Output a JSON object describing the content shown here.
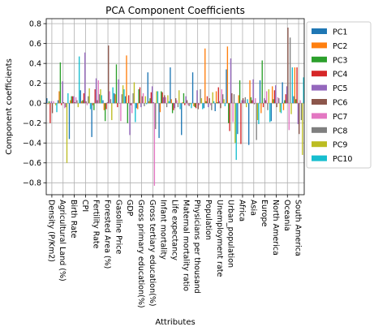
{
  "chart_data": {
    "type": "bar",
    "title": "PCA Component Coefficients",
    "xlabel": "Attributes",
    "ylabel": "Component coefficients",
    "ylim": [
      -0.92,
      0.85
    ],
    "yticks": [
      -0.8,
      -0.6,
      -0.4,
      -0.2,
      0.0,
      0.2,
      0.4,
      0.6,
      0.8
    ],
    "ytick_labels": [
      "−0.8",
      "−0.6",
      "−0.4",
      "−0.2",
      "0.0",
      "0.2",
      "0.4",
      "0.6",
      "0.8"
    ],
    "grid": true,
    "legend_position": "outside-right",
    "categories": [
      "Density (P/Km2)",
      "Agricultural Land (%)",
      "Birth Rate",
      "CPI",
      "Fertility Rate",
      "Forested Area (%)",
      "Gasoline Price",
      "GDP",
      "Gross primary education(%)",
      "Gross tertiary education(%)",
      "Infant mortality",
      "Life expectancy",
      "Maternal mortality ratio",
      "Physicians per thousand",
      "Population",
      "Unemployment rate",
      "Urban_population",
      "Africa",
      "Asia",
      "Europe",
      "North America",
      "Oceania",
      "South America"
    ],
    "series": [
      {
        "name": "PC1",
        "color": "#1f77b4",
        "values": [
          0.05,
          0.03,
          -0.36,
          0.13,
          -0.34,
          0.03,
          0.1,
          0.07,
          -0.05,
          0.31,
          -0.35,
          0.36,
          -0.32,
          0.31,
          -0.05,
          -0.08,
          0.34,
          -0.31,
          -0.42,
          0.23,
          -0.18,
          0.21,
          0.07
        ]
      },
      {
        "name": "PC2",
        "color": "#ff7f0e",
        "values": [
          -0.01,
          0.12,
          0.03,
          0.02,
          -0.02,
          -0.07,
          0.09,
          0.48,
          -0.06,
          0.02,
          -0.09,
          0.04,
          0.01,
          -0.03,
          0.55,
          0.12,
          0.57,
          0.08,
          0.23,
          -0.1,
          0.17,
          -0.07,
          0.36
        ]
      },
      {
        "name": "PC3",
        "color": "#2ca02c",
        "values": [
          0.02,
          0.41,
          0.07,
          0.03,
          -0.07,
          -0.18,
          0.39,
          -0.2,
          0.14,
          0.05,
          0.12,
          -0.1,
          0.1,
          -0.04,
          0.02,
          0.01,
          -0.2,
          0.23,
          0.06,
          0.43,
          0.04,
          0.03,
          0.04
        ]
      },
      {
        "name": "PC4",
        "color": "#d62728",
        "values": [
          -0.2,
          -0.02,
          0.07,
          0.1,
          0.14,
          -0.06,
          -0.04,
          0.08,
          0.16,
          0.11,
          0.11,
          -0.07,
          -0.02,
          -0.05,
          0.07,
          0.16,
          -0.28,
          -0.41,
          0.03,
          -0.04,
          0.13,
          0.09,
          0.36
        ]
      },
      {
        "name": "PC5",
        "color": "#9467bd",
        "values": [
          0.02,
          0.22,
          0.07,
          0.51,
          0.25,
          0.01,
          0.24,
          -0.32,
          -0.04,
          0.17,
          0.06,
          -0.05,
          0.07,
          0.13,
          -0.04,
          0.02,
          0.45,
          0.03,
          0.24,
          0.05,
          0.18,
          0.17,
          -0.21
        ]
      },
      {
        "name": "PC6",
        "color": "#8c564b",
        "values": [
          -0.1,
          0.01,
          0.01,
          0.02,
          0.03,
          0.58,
          0.0,
          -0.02,
          0.07,
          0.01,
          0.08,
          0.05,
          0.03,
          -0.06,
          0.05,
          -0.05,
          0.1,
          0.05,
          -0.01,
          0.03,
          -0.04,
          0.76,
          -0.31
        ]
      },
      {
        "name": "PC7",
        "color": "#e377c2",
        "values": [
          0.02,
          -0.05,
          0.06,
          -0.02,
          0.23,
          0.12,
          -0.18,
          -0.1,
          0.1,
          -0.83,
          0.06,
          0.03,
          -0.02,
          -0.02,
          -0.02,
          0.14,
          -0.19,
          0.03,
          0.05,
          0.12,
          0.06,
          -0.27,
          0.03
        ]
      },
      {
        "name": "PC8",
        "color": "#7f7f7f",
        "values": [
          0.0,
          -0.04,
          0.03,
          0.07,
          0.09,
          0.04,
          0.09,
          0.1,
          -0.03,
          -0.26,
          -0.04,
          -0.04,
          -0.03,
          0.14,
          -0.07,
          0.09,
          0.09,
          0.06,
          -0.37,
          -0.07,
          0.05,
          0.66,
          -0.17
        ]
      },
      {
        "name": "PC9",
        "color": "#bcbd22",
        "values": [
          -0.02,
          -0.6,
          -0.04,
          0.15,
          0.14,
          -0.17,
          0.18,
          0.21,
          0.07,
          0.12,
          0.08,
          0.13,
          -0.01,
          0.05,
          0.11,
          0.04,
          -0.4,
          -0.04,
          -0.17,
          0.14,
          -0.09,
          -0.11,
          -0.52
        ]
      },
      {
        "name": "PC10",
        "color": "#17becf",
        "values": [
          -0.09,
          0.1,
          0.47,
          -0.06,
          0.08,
          0.16,
          0.14,
          -0.19,
          -0.01,
          0.12,
          0.02,
          -0.06,
          -0.05,
          -0.06,
          0.02,
          -0.03,
          -0.57,
          0.04,
          -0.21,
          -0.19,
          -0.1,
          0.36,
          0.26
        ]
      }
    ]
  }
}
